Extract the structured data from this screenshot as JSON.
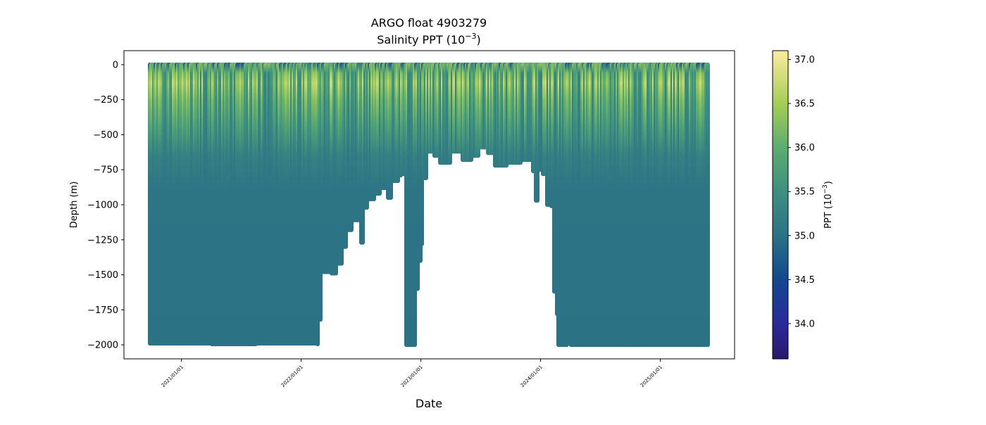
{
  "chart_data": {
    "type": "scatter",
    "title_line1": "ARGO float 4903279",
    "title_line2": "Salinity PPT (10",
    "title_exp": "−3",
    "title_close": ")",
    "xlabel": "Date",
    "ylabel": "Depth (m)",
    "xlim": [
      2020.52,
      2025.62
    ],
    "ylim": [
      -2100,
      100
    ],
    "xticks": [
      {
        "value": 2021.0,
        "label": "2021/01/01"
      },
      {
        "value": 2022.0,
        "label": "2022/01/01"
      },
      {
        "value": 2023.0,
        "label": "2023/01/01"
      },
      {
        "value": 2024.0,
        "label": "2024/01/01"
      },
      {
        "value": 2025.0,
        "label": "2025/01/01"
      }
    ],
    "yticks": [
      {
        "value": 0,
        "label": "0"
      },
      {
        "value": -250,
        "label": "−250"
      },
      {
        "value": -500,
        "label": "−500"
      },
      {
        "value": -750,
        "label": "−750"
      },
      {
        "value": -1000,
        "label": "−1000"
      },
      {
        "value": -1250,
        "label": "−1250"
      },
      {
        "value": -1500,
        "label": "−1500"
      },
      {
        "value": -1750,
        "label": "−1750"
      },
      {
        "value": -2000,
        "label": "−2000"
      }
    ],
    "profile_max_depth": [
      [
        2020.735,
        -1990
      ],
      [
        2021.25,
        -1995
      ],
      [
        2021.63,
        -1990
      ],
      [
        2021.65,
        -1990
      ],
      [
        2022.135,
        -1995
      ],
      [
        2022.147,
        -1820
      ],
      [
        2022.165,
        -1480
      ],
      [
        2022.253,
        -1490
      ],
      [
        2022.3,
        -1420
      ],
      [
        2022.34,
        -1300
      ],
      [
        2022.38,
        -1180
      ],
      [
        2022.43,
        -1110
      ],
      [
        2022.49,
        -1080
      ],
      [
        2022.5,
        -1270
      ],
      [
        2022.52,
        -1020
      ],
      [
        2022.55,
        -960
      ],
      [
        2022.61,
        -920
      ],
      [
        2022.66,
        -880
      ],
      [
        2022.72,
        -950
      ],
      [
        2022.75,
        -830
      ],
      [
        2022.81,
        -790
      ],
      [
        2022.84,
        -780
      ],
      [
        2022.87,
        -2000
      ],
      [
        2022.95,
        -2000
      ],
      [
        2022.96,
        -1600
      ],
      [
        2022.98,
        -1400
      ],
      [
        2023.0,
        -1280
      ],
      [
        2023.02,
        -810
      ],
      [
        2023.05,
        -620
      ],
      [
        2023.11,
        -650
      ],
      [
        2023.16,
        -700
      ],
      [
        2023.25,
        -620
      ],
      [
        2023.34,
        -680
      ],
      [
        2023.43,
        -650
      ],
      [
        2023.48,
        -590
      ],
      [
        2023.55,
        -630
      ],
      [
        2023.61,
        -720
      ],
      [
        2023.72,
        -700
      ],
      [
        2023.84,
        -680
      ],
      [
        2023.93,
        -760
      ],
      [
        2023.96,
        -970
      ],
      [
        2023.98,
        -750
      ],
      [
        2024.01,
        -780
      ],
      [
        2024.05,
        -1000
      ],
      [
        2024.09,
        -1010
      ],
      [
        2024.11,
        -1620
      ],
      [
        2024.13,
        -1780
      ],
      [
        2024.14,
        -2000
      ],
      [
        2024.21,
        -2000
      ],
      [
        2024.23,
        -1760
      ],
      [
        2024.25,
        -2000
      ],
      [
        2025.4,
        -1995
      ]
    ],
    "typical_profile": [
      [
        0,
        36.1
      ],
      [
        60,
        36.5
      ],
      [
        130,
        36.8
      ],
      [
        250,
        36.4
      ],
      [
        450,
        35.9
      ],
      [
        650,
        35.3
      ],
      [
        900,
        35.05
      ],
      [
        2000,
        35.0
      ]
    ],
    "colorbar": {
      "label": "PPT (10",
      "label_exp": "−3",
      "label_close": ")",
      "range": [
        33.6,
        37.1
      ],
      "ticks": [
        {
          "value": 34.0,
          "label": "34.0"
        },
        {
          "value": 34.5,
          "label": "34.5"
        },
        {
          "value": 35.0,
          "label": "35.0"
        },
        {
          "value": 35.5,
          "label": "35.5"
        },
        {
          "value": 36.0,
          "label": "36.0"
        },
        {
          "value": 36.5,
          "label": "36.5"
        },
        {
          "value": 37.0,
          "label": "37.0"
        }
      ],
      "colormap": [
        [
          33.6,
          "#29186b"
        ],
        [
          34.0,
          "#2a2a9a"
        ],
        [
          34.5,
          "#11488f"
        ],
        [
          35.0,
          "#2b7285"
        ],
        [
          35.5,
          "#3e8f80"
        ],
        [
          36.0,
          "#5bad6f"
        ],
        [
          36.5,
          "#a6cd56"
        ],
        [
          37.1,
          "#fcec9f"
        ]
      ]
    }
  }
}
